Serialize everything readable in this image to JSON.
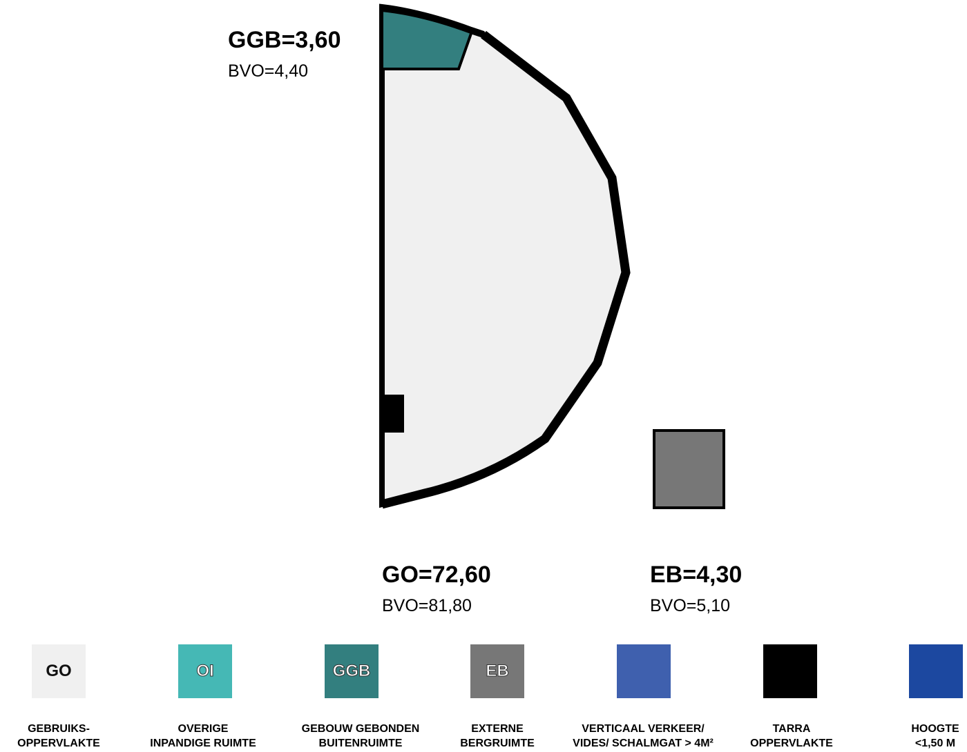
{
  "labels": {
    "ggb": {
      "main": "GGB=3,60",
      "sub": "BVO=4,40"
    },
    "go": {
      "main": "GO=72,60",
      "sub": "BVO=81,80"
    },
    "eb": {
      "main": "EB=4,30",
      "sub": "BVO=5,10"
    }
  },
  "colors": {
    "go": "#f0f0f0",
    "oi": "#45b8b5",
    "ggb": "#337f7f",
    "eb": "#777777",
    "verticaal": "#3f60ae",
    "tarra": "#000000",
    "hoogte": "#1c48a0",
    "outline": "#000000"
  },
  "legend": [
    {
      "code": "GO",
      "line1": "GEBRUIKS-",
      "line2": "OPPERVLAKTE"
    },
    {
      "code": "OI",
      "line1": "OVERIGE",
      "line2": "INPANDIGE RUIMTE"
    },
    {
      "code": "GGB",
      "line1": "GEBOUW GEBONDEN",
      "line2": "BUITENRUIMTE"
    },
    {
      "code": "EB",
      "line1": "EXTERNE",
      "line2": "BERGRUIMTE"
    },
    {
      "code": "",
      "line1": "VERTICAAL VERKEER/",
      "line2": "VIDES/ SCHALMGAT > 4M²"
    },
    {
      "code": "",
      "line1": "TARRA",
      "line2": "OPPERVLAKTE"
    },
    {
      "code": "",
      "line1": "HOOGTE",
      "line2": "<1,50 M"
    }
  ]
}
